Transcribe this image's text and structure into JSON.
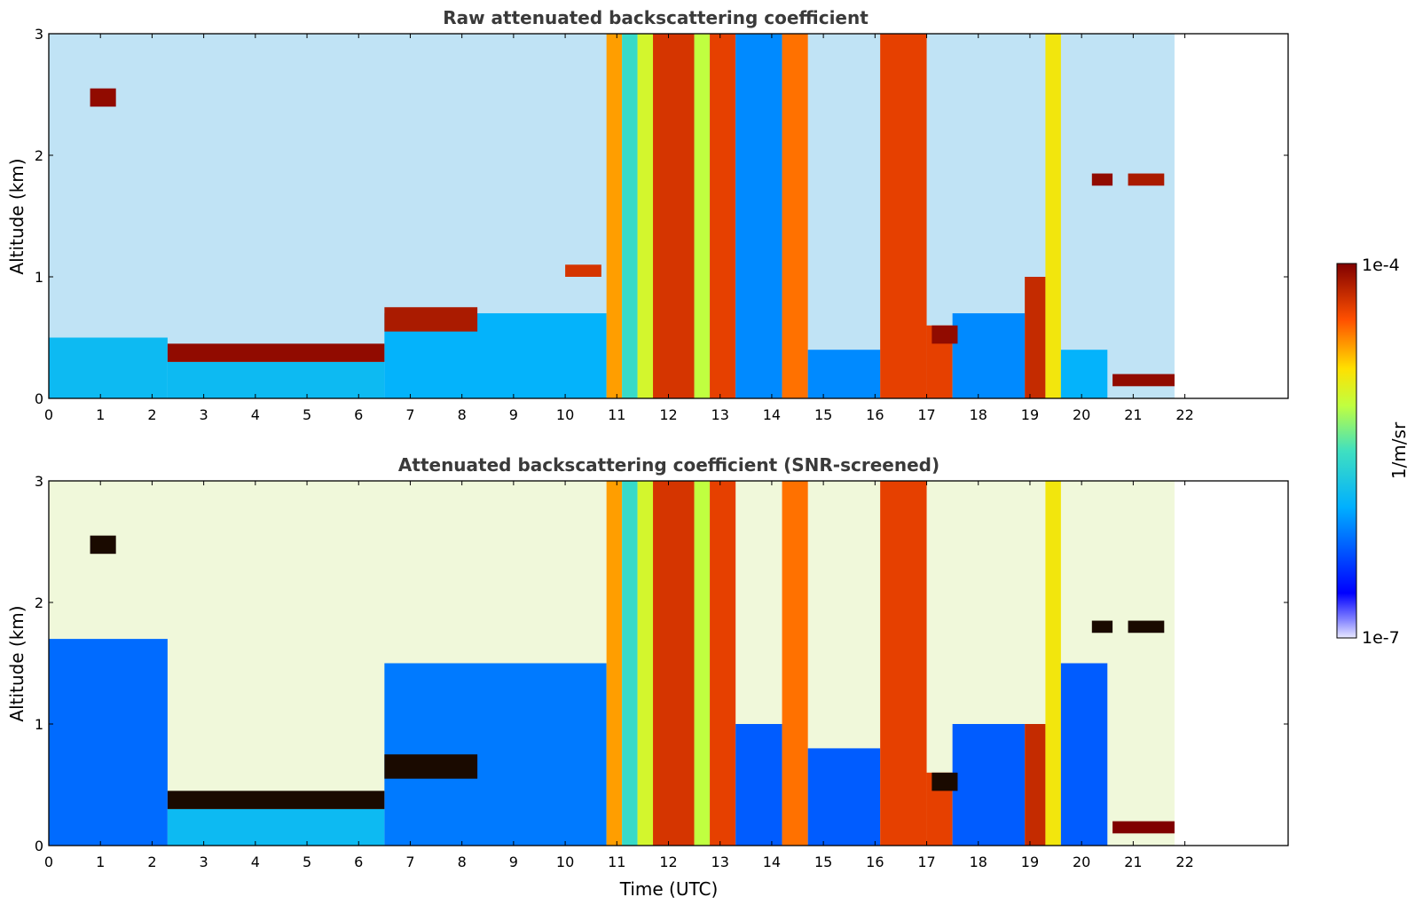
{
  "chart_data": [
    {
      "type": "heatmap",
      "title": "Raw attenuated backscattering coefficient",
      "xlabel": "",
      "ylabel": "Altitude (km)",
      "xlim": [
        0,
        24
      ],
      "ylim": [
        0,
        3
      ],
      "x_ticks": [
        "0",
        "1",
        "2",
        "3",
        "4",
        "5",
        "6",
        "7",
        "8",
        "9",
        "10",
        "11",
        "12",
        "13",
        "14",
        "15",
        "16",
        "17",
        "18",
        "19",
        "20",
        "21",
        "22"
      ],
      "y_ticks": [
        "0",
        "1",
        "2",
        "3"
      ],
      "data_end_time": 21.8,
      "color_scale": "log",
      "colormap": "jet",
      "layers": [
        {
          "t0": 0.0,
          "t1": 2.3,
          "h0": 0.0,
          "h1": 0.5,
          "level": 0.38
        },
        {
          "t0": 2.3,
          "t1": 6.5,
          "h0": 0.0,
          "h1": 0.3,
          "level": 0.38
        },
        {
          "t0": 6.5,
          "t1": 10.8,
          "h0": 0.0,
          "h1": 0.7,
          "level": 0.36
        },
        {
          "t0": 10.8,
          "t1": 11.1,
          "h0": 0.0,
          "h1": 3.0,
          "level": 0.78
        },
        {
          "t0": 11.1,
          "t1": 11.4,
          "h0": 0.0,
          "h1": 3.0,
          "level": 0.48
        },
        {
          "t0": 11.4,
          "t1": 11.7,
          "h0": 0.0,
          "h1": 3.0,
          "level": 0.65
        },
        {
          "t0": 11.7,
          "t1": 12.5,
          "h0": 0.0,
          "h1": 3.0,
          "level": 0.9
        },
        {
          "t0": 12.5,
          "t1": 12.8,
          "h0": 0.0,
          "h1": 3.0,
          "level": 0.62
        },
        {
          "t0": 12.8,
          "t1": 13.3,
          "h0": 0.0,
          "h1": 3.0,
          "level": 0.88
        },
        {
          "t0": 13.3,
          "t1": 14.2,
          "h0": 0.0,
          "h1": 3.0,
          "level": 0.3
        },
        {
          "t0": 14.2,
          "t1": 14.7,
          "h0": 0.0,
          "h1": 3.0,
          "level": 0.82
        },
        {
          "t0": 14.7,
          "t1": 16.1,
          "h0": 0.0,
          "h1": 0.4,
          "level": 0.3
        },
        {
          "t0": 16.1,
          "t1": 17.0,
          "h0": 0.0,
          "h1": 3.0,
          "level": 0.88
        },
        {
          "t0": 17.0,
          "t1": 17.5,
          "h0": 0.0,
          "h1": 0.6,
          "level": 0.88
        },
        {
          "t0": 17.5,
          "t1": 18.9,
          "h0": 0.0,
          "h1": 0.7,
          "level": 0.3
        },
        {
          "t0": 18.9,
          "t1": 19.3,
          "h0": 0.0,
          "h1": 1.0,
          "level": 0.92
        },
        {
          "t0": 19.3,
          "t1": 19.6,
          "h0": 0.0,
          "h1": 3.0,
          "level": 0.7
        },
        {
          "t0": 19.6,
          "t1": 20.5,
          "h0": 0.0,
          "h1": 0.4,
          "level": 0.36
        },
        {
          "t0": 20.6,
          "t1": 21.8,
          "h0": 0.1,
          "h1": 0.2,
          "level": 0.98
        }
      ],
      "aerosol_layers": [
        {
          "t0": 2.3,
          "t1": 6.5,
          "h0": 0.3,
          "h1": 0.45,
          "level": 0.98
        },
        {
          "t0": 6.5,
          "t1": 8.3,
          "h0": 0.55,
          "h1": 0.75,
          "level": 0.95
        },
        {
          "t0": 10.0,
          "t1": 10.7,
          "h0": 1.0,
          "h1": 1.1,
          "level": 0.9
        },
        {
          "t0": 17.1,
          "t1": 17.6,
          "h0": 0.45,
          "h1": 0.6,
          "level": 0.98
        },
        {
          "t0": 0.8,
          "t1": 1.3,
          "h0": 2.4,
          "h1": 2.55,
          "level": 0.98
        },
        {
          "t0": 20.2,
          "t1": 20.6,
          "h0": 1.75,
          "h1": 1.85,
          "level": 0.98
        },
        {
          "t0": 20.9,
          "t1": 21.6,
          "h0": 1.75,
          "h1": 1.85,
          "level": 0.95
        }
      ]
    },
    {
      "type": "heatmap",
      "title": "Attenuated backscattering coefficient (SNR-screened)",
      "xlabel": "Time (UTC)",
      "ylabel": "Altitude (km)",
      "xlim": [
        0,
        24
      ],
      "ylim": [
        0,
        3
      ],
      "x_ticks": [
        "0",
        "1",
        "2",
        "3",
        "4",
        "5",
        "6",
        "7",
        "8",
        "9",
        "10",
        "11",
        "12",
        "13",
        "14",
        "15",
        "16",
        "17",
        "18",
        "19",
        "20",
        "21",
        "22"
      ],
      "y_ticks": [
        "0",
        "1",
        "2",
        "3"
      ],
      "data_end_time": 21.8,
      "color_scale": "log",
      "colormap": "jet",
      "layers": [
        {
          "t0": 0.0,
          "t1": 2.3,
          "h0": 0.0,
          "h1": 1.7,
          "level": 0.26
        },
        {
          "t0": 2.3,
          "t1": 6.5,
          "h0": 0.0,
          "h1": 0.3,
          "level": 0.38
        },
        {
          "t0": 6.5,
          "t1": 10.8,
          "h0": 0.0,
          "h1": 1.5,
          "level": 0.28
        },
        {
          "t0": 10.8,
          "t1": 11.1,
          "h0": 0.0,
          "h1": 3.0,
          "level": 0.78
        },
        {
          "t0": 11.1,
          "t1": 11.4,
          "h0": 0.0,
          "h1": 3.0,
          "level": 0.48
        },
        {
          "t0": 11.4,
          "t1": 11.7,
          "h0": 0.0,
          "h1": 3.0,
          "level": 0.65
        },
        {
          "t0": 11.7,
          "t1": 12.5,
          "h0": 0.0,
          "h1": 3.0,
          "level": 0.9
        },
        {
          "t0": 12.5,
          "t1": 12.8,
          "h0": 0.0,
          "h1": 3.0,
          "level": 0.62
        },
        {
          "t0": 12.8,
          "t1": 13.3,
          "h0": 0.0,
          "h1": 3.0,
          "level": 0.88
        },
        {
          "t0": 13.3,
          "t1": 14.2,
          "h0": 0.0,
          "h1": 1.0,
          "level": 0.24
        },
        {
          "t0": 14.2,
          "t1": 14.7,
          "h0": 0.0,
          "h1": 3.0,
          "level": 0.82
        },
        {
          "t0": 14.7,
          "t1": 16.1,
          "h0": 0.0,
          "h1": 0.8,
          "level": 0.24
        },
        {
          "t0": 16.1,
          "t1": 17.0,
          "h0": 0.0,
          "h1": 3.0,
          "level": 0.88
        },
        {
          "t0": 17.0,
          "t1": 17.5,
          "h0": 0.0,
          "h1": 0.6,
          "level": 0.88
        },
        {
          "t0": 17.5,
          "t1": 18.9,
          "h0": 0.0,
          "h1": 1.0,
          "level": 0.24
        },
        {
          "t0": 18.9,
          "t1": 19.3,
          "h0": 0.0,
          "h1": 1.0,
          "level": 0.92
        },
        {
          "t0": 19.3,
          "t1": 19.6,
          "h0": 0.0,
          "h1": 3.0,
          "level": 0.7
        },
        {
          "t0": 19.6,
          "t1": 20.5,
          "h0": 0.0,
          "h1": 1.5,
          "level": 0.24
        },
        {
          "t0": 20.6,
          "t1": 21.8,
          "h0": 0.1,
          "h1": 0.2,
          "level": 1.0
        }
      ],
      "aerosol_layers": [
        {
          "t0": 2.3,
          "t1": 6.5,
          "h0": 0.3,
          "h1": 0.45,
          "level": 1.0
        },
        {
          "t0": 6.5,
          "t1": 8.3,
          "h0": 0.55,
          "h1": 0.75,
          "level": 1.0
        },
        {
          "t0": 17.1,
          "t1": 17.6,
          "h0": 0.45,
          "h1": 0.6,
          "level": 1.0
        },
        {
          "t0": 0.8,
          "t1": 1.3,
          "h0": 2.4,
          "h1": 2.55,
          "level": 1.0
        },
        {
          "t0": 20.2,
          "t1": 20.6,
          "h0": 1.75,
          "h1": 1.85,
          "level": 1.0
        },
        {
          "t0": 20.9,
          "t1": 21.6,
          "h0": 1.75,
          "h1": 1.85,
          "level": 1.0
        }
      ]
    }
  ],
  "colorbar": {
    "label": "1/m/sr",
    "max_label": "1e-4",
    "min_label": "1e-7",
    "colormap": "jet"
  }
}
